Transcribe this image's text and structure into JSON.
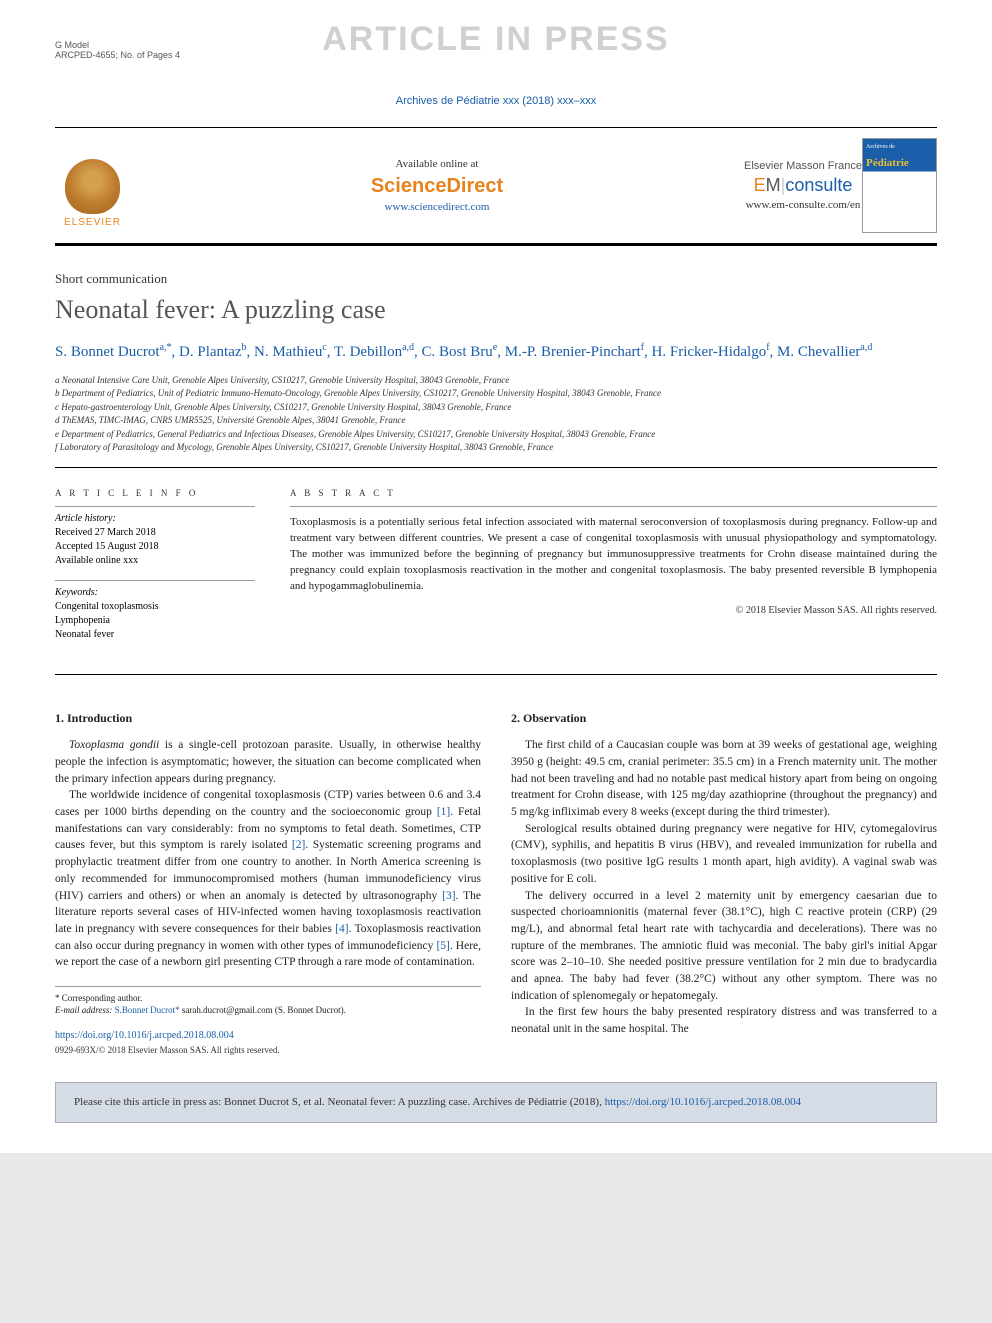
{
  "header": {
    "model_line1": "G Model",
    "model_line2": "ARCPED-4655; No. of Pages 4",
    "watermark": "ARTICLE IN PRESS",
    "journal_ref": "Archives de Pédiatrie xxx (2018) xxx–xxx"
  },
  "brandbar": {
    "elsevier": "ELSEVIER",
    "available": "Available online at",
    "sciencedirect": "ScienceDirect",
    "sd_url": "www.sciencedirect.com",
    "em_line1": "Elsevier Masson France",
    "em_logo_e": "E",
    "em_logo_m": "M",
    "em_logo_c": "consulte",
    "em_url": "www.em-consulte.com/en",
    "cover_top": "Archives de",
    "cover_main": "Pédiatrie"
  },
  "article": {
    "type": "Short communication",
    "title": "Neonatal fever: A puzzling case",
    "authors_html": "S. Bonnet Ducrot<sup>a,*</sup>, D. Plantaz<sup>b</sup>, N. Mathieu<sup>c</sup>, T. Debillon<sup>a,d</sup>, C. Bost Bru<sup>e</sup>, M.-P. Brenier-Pinchart<sup>f</sup>, H. Fricker-Hidalgo<sup>f</sup>, M. Chevallier<sup>a,d</sup>"
  },
  "affiliations": {
    "a": "a Neonatal Intensive Care Unit, Grenoble Alpes University, CS10217, Grenoble University Hospital, 38043 Grenoble, France",
    "b": "b Department of Pediatrics, Unit of Pediatric Immuno-Hemato-Oncology, Grenoble Alpes University, CS10217, Grenoble University Hospital, 38043 Grenoble, France",
    "c": "c Hepato-gastroenterology Unit, Grenoble Alpes University, CS10217, Grenoble University Hospital, 38043 Grenoble, France",
    "d": "d ThEMAS, TIMC-IMAG, CNRS UMR5525, Université Grenoble Alpes, 38041 Grenoble, France",
    "e": "e Department of Pediatrics, General Pediatrics and Infectious Diseases, Grenoble Alpes University, CS10217, Grenoble University Hospital, 38043 Grenoble, France",
    "f": "f Laboratory of Parasitology and Mycology, Grenoble Alpes University, CS10217, Grenoble University Hospital, 38043 Grenoble, France"
  },
  "info": {
    "head": "A R T I C L E  I N F O",
    "history_label": "Article history:",
    "received": "Received 27 March 2018",
    "accepted": "Accepted 15 August 2018",
    "online": "Available online xxx",
    "keywords_label": "Keywords:",
    "kw1": "Congenital toxoplasmosis",
    "kw2": "Lymphopenia",
    "kw3": "Neonatal fever"
  },
  "abstract": {
    "head": "A B S T R A C T",
    "text": "Toxoplasmosis is a potentially serious fetal infection associated with maternal seroconversion of toxoplasmosis during pregnancy. Follow-up and treatment vary between different countries. We present a case of congenital toxoplasmosis with unusual physiopathology and symptomatology. The mother was immunized before the beginning of pregnancy but immunosuppressive treatments for Crohn disease maintained during the pregnancy could explain toxoplasmosis reactivation in the mother and congenital toxoplasmosis. The baby presented reversible B lymphopenia and hypogammaglobulinemia.",
    "copyright": "© 2018 Elsevier Masson SAS. All rights reserved."
  },
  "sections": {
    "intro_head": "1. Introduction",
    "intro_p1": "Toxoplasma gondii is a single-cell protozoan parasite. Usually, in otherwise healthy people the infection is asymptomatic; however, the situation can become complicated when the primary infection appears during pregnancy.",
    "intro_p2a": "The worldwide incidence of congenital toxoplasmosis (CTP) varies between 0.6 and 3.4 cases per 1000 births depending on the country and the socioeconomic group ",
    "ref1": "[1]",
    "intro_p2b": ". Fetal manifestations can vary considerably: from no symptoms to fetal death. Sometimes, CTP causes fever, but this symptom is rarely isolated ",
    "ref2": "[2]",
    "intro_p2c": ". Systematic screening programs and prophylactic treatment differ from one country to another. In North America screening is only recommended for immunocompromised mothers (human immunodeficiency virus (HIV) carriers and others) or when an anomaly is detected by ultrasonography ",
    "ref3": "[3]",
    "intro_p2d": ". The literature reports several cases of HIV-infected women having toxoplasmosis reactivation late in pregnancy with severe consequences for their babies ",
    "ref4": "[4]",
    "intro_p2e": ". Toxoplasmosis reactivation can also occur during pregnancy in women with other types of immunodeficiency ",
    "ref5": "[5]",
    "intro_p2f": ". Here, we report the case of a newborn girl presenting CTP through a rare mode of contamination.",
    "obs_head": "2. Observation",
    "obs_p1": "The first child of a Caucasian couple was born at 39 weeks of gestational age, weighing 3950 g (height: 49.5 cm, cranial perimeter: 35.5 cm) in a French maternity unit. The mother had not been traveling and had no notable past medical history apart from being on ongoing treatment for Crohn disease, with 125 mg/day azathioprine (throughout the pregnancy) and 5 mg/kg infliximab every 8 weeks (except during the third trimester).",
    "obs_p2": "Serological results obtained during pregnancy were negative for HIV, cytomegalovirus (CMV), syphilis, and hepatitis B virus (HBV), and revealed immunization for rubella and toxoplasmosis (two positive IgG results 1 month apart, high avidity). A vaginal swab was positive for E coli.",
    "obs_p3": "The delivery occurred in a level 2 maternity unit by emergency caesarian due to suspected chorioamnionitis (maternal fever (38.1°C), high C reactive protein (CRP) (29 mg/L), and abnormal fetal heart rate with tachycardia and decelerations). There was no rupture of the membranes. The amniotic fluid was meconial. The baby girl's initial Apgar score was 2–10–10. She needed positive pressure ventilation for 2 min due to bradycardia and apnea. The baby had fever (38.2°C) without any other symptom. There was no indication of splenomegaly or hepatomegaly.",
    "obs_p4": "In the first few hours the baby presented respiratory distress and was transferred to a neonatal unit in the same hospital. The"
  },
  "footnote": {
    "corr": "* Corresponding author.",
    "email_label": "E-mail address: ",
    "email_link": "S.Bonnet Ducrot*",
    "email": "sarah.ducrot@gmail.com (S. Bonnet Ducrot).",
    "doi": "https://doi.org/10.1016/j.arcped.2018.08.004",
    "issn": "0929-693X/© 2018 Elsevier Masson SAS. All rights reserved."
  },
  "citebox": {
    "text": "Please cite this article in press as: Bonnet Ducrot S, et al. Neonatal fever: A puzzling case. Archives de Pédiatrie (2018), ",
    "link": "https://doi.org/10.1016/j.arcped.2018.08.004"
  },
  "colors": {
    "link": "#1a5da8",
    "orange": "#e8831e",
    "watermark": "#d0d0d0",
    "citebox_bg": "#d5dce5"
  }
}
